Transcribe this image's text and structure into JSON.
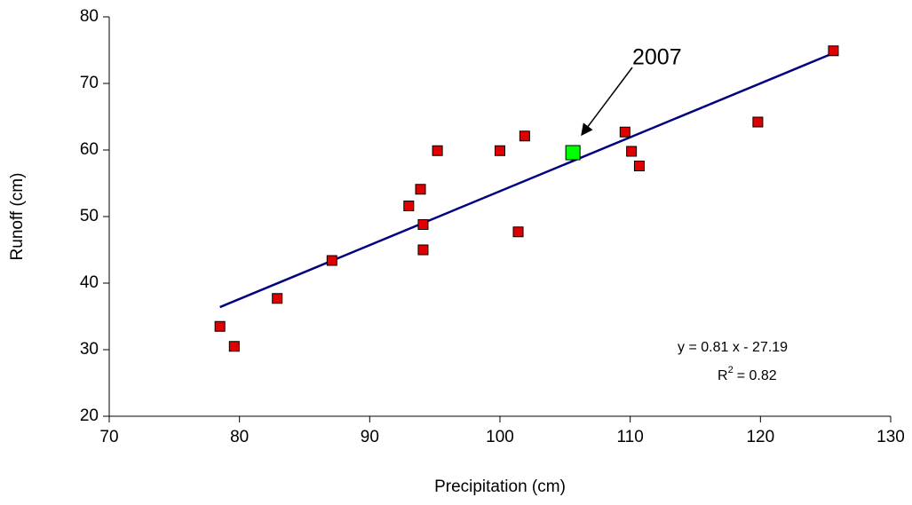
{
  "chart_data": {
    "type": "scatter",
    "xlabel": "Precipitation (cm)",
    "ylabel": "Runoff  (cm)",
    "xlim": [
      70,
      130
    ],
    "ylim": [
      20,
      80
    ],
    "xticks": [
      70,
      80,
      90,
      100,
      110,
      120,
      130
    ],
    "yticks": [
      20,
      30,
      40,
      50,
      60,
      70,
      80
    ],
    "grid": false,
    "series": [
      {
        "color": "#e00000",
        "x": [
          78.5,
          79.6,
          82.9,
          87.1,
          93.0,
          93.9,
          94.1,
          94.1,
          95.2,
          100.0,
          101.4,
          101.9,
          109.6,
          110.1,
          110.7,
          119.8,
          125.6
        ],
        "values": [
          33.5,
          30.5,
          37.7,
          43.4,
          51.6,
          54.1,
          48.8,
          45.0,
          59.9,
          59.9,
          47.7,
          62.1,
          62.7,
          59.8,
          57.6,
          64.2,
          74.9
        ]
      },
      {
        "color": "#00ff00",
        "x": [
          105.6
        ],
        "values": [
          59.6
        ]
      }
    ],
    "trendline": {
      "color": "#000080",
      "slope": 0.81,
      "intercept": -27.19,
      "equation": "y =  0.81 x -  27.19",
      "r_label": "R",
      "r_superscript": "2",
      "r_value": "=  0.82"
    },
    "annotation": "2007"
  }
}
